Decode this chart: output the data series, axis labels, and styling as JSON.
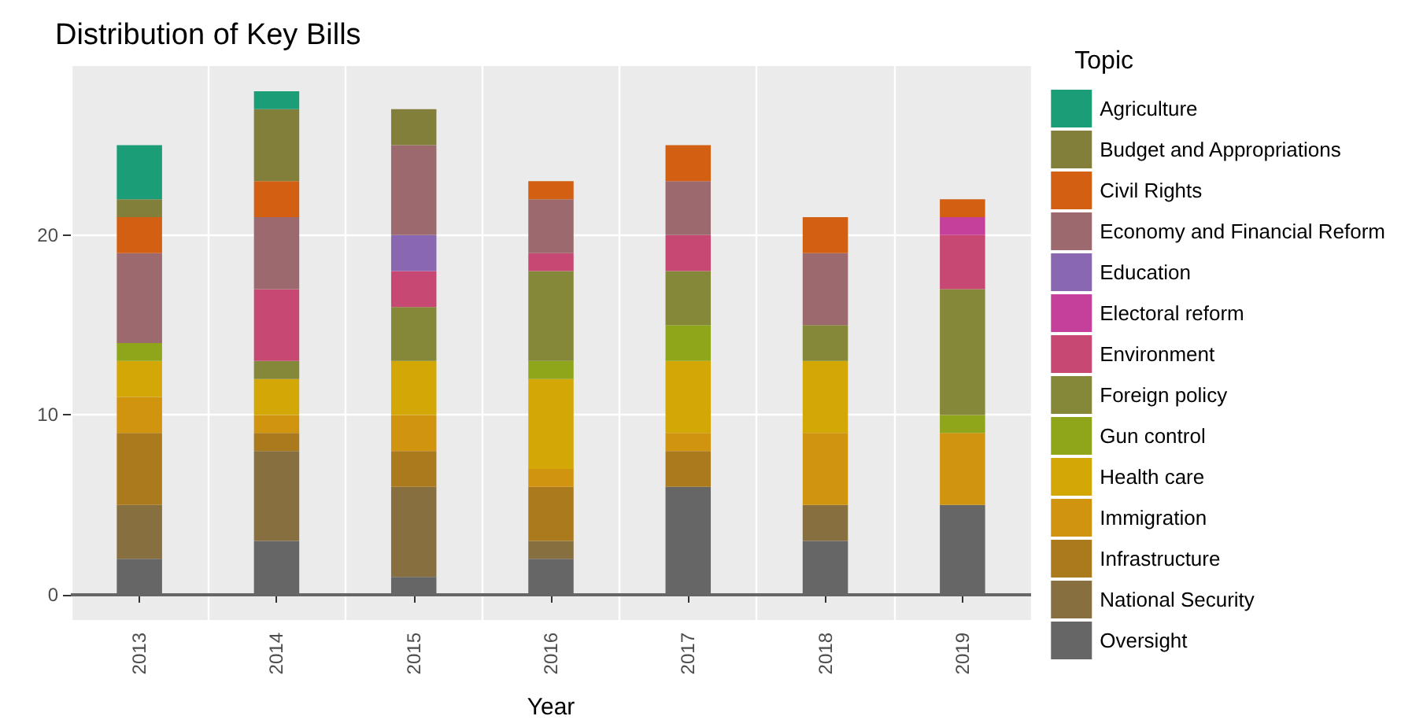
{
  "chart_data": {
    "type": "bar",
    "stacked": true,
    "title": "Distribution of Key Bills",
    "xlabel": "Year",
    "legend_title": "Topic",
    "legend": "right",
    "grid": true,
    "categories": [
      "2013",
      "2014",
      "2015",
      "2016",
      "2017",
      "2018",
      "2019"
    ],
    "ylim": [
      -1.4,
      29.4
    ],
    "yticks": [
      0,
      10,
      20
    ],
    "ref_lines": [
      {
        "axis": "y",
        "value": 0,
        "color": "#666666"
      }
    ],
    "series": [
      {
        "name": "Oversight",
        "color": "#666666",
        "values": [
          2,
          3,
          1,
          2,
          6,
          3,
          5
        ]
      },
      {
        "name": "National Security",
        "color": "#876f40",
        "values": [
          3,
          5,
          5,
          1,
          0,
          2,
          0
        ]
      },
      {
        "name": "Infrastructure",
        "color": "#ab7a1d",
        "values": [
          4,
          1,
          2,
          3,
          2,
          0,
          0
        ]
      },
      {
        "name": "Immigration",
        "color": "#d0940f",
        "values": [
          2,
          1,
          2,
          1,
          1,
          4,
          4
        ]
      },
      {
        "name": "Health care",
        "color": "#d3a806",
        "values": [
          2,
          2,
          3,
          5,
          4,
          4,
          0
        ]
      },
      {
        "name": "Gun control",
        "color": "#8fa61a",
        "values": [
          1,
          0,
          0,
          1,
          2,
          0,
          1
        ]
      },
      {
        "name": "Foreign policy",
        "color": "#858838",
        "values": [
          0,
          1,
          3,
          5,
          3,
          2,
          7
        ]
      },
      {
        "name": "Environment",
        "color": "#c84874",
        "values": [
          0,
          4,
          2,
          1,
          2,
          0,
          3
        ]
      },
      {
        "name": "Electoral reform",
        "color": "#c5409a",
        "values": [
          0,
          0,
          0,
          0,
          0,
          0,
          1
        ]
      },
      {
        "name": "Education",
        "color": "#8a67b1",
        "values": [
          0,
          0,
          2,
          0,
          0,
          0,
          0
        ]
      },
      {
        "name": "Economy and Financial Reform",
        "color": "#9c6a6e",
        "values": [
          5,
          4,
          5,
          3,
          3,
          4,
          0
        ]
      },
      {
        "name": "Civil Rights",
        "color": "#d35f12",
        "values": [
          2,
          2,
          0,
          1,
          2,
          2,
          1
        ]
      },
      {
        "name": "Budget and Appropriations",
        "color": "#827f3a",
        "values": [
          1,
          4,
          2,
          0,
          0,
          0,
          0
        ]
      },
      {
        "name": "Agriculture",
        "color": "#1b9e77",
        "values": [
          3,
          1,
          0,
          0,
          0,
          0,
          0
        ]
      }
    ]
  }
}
